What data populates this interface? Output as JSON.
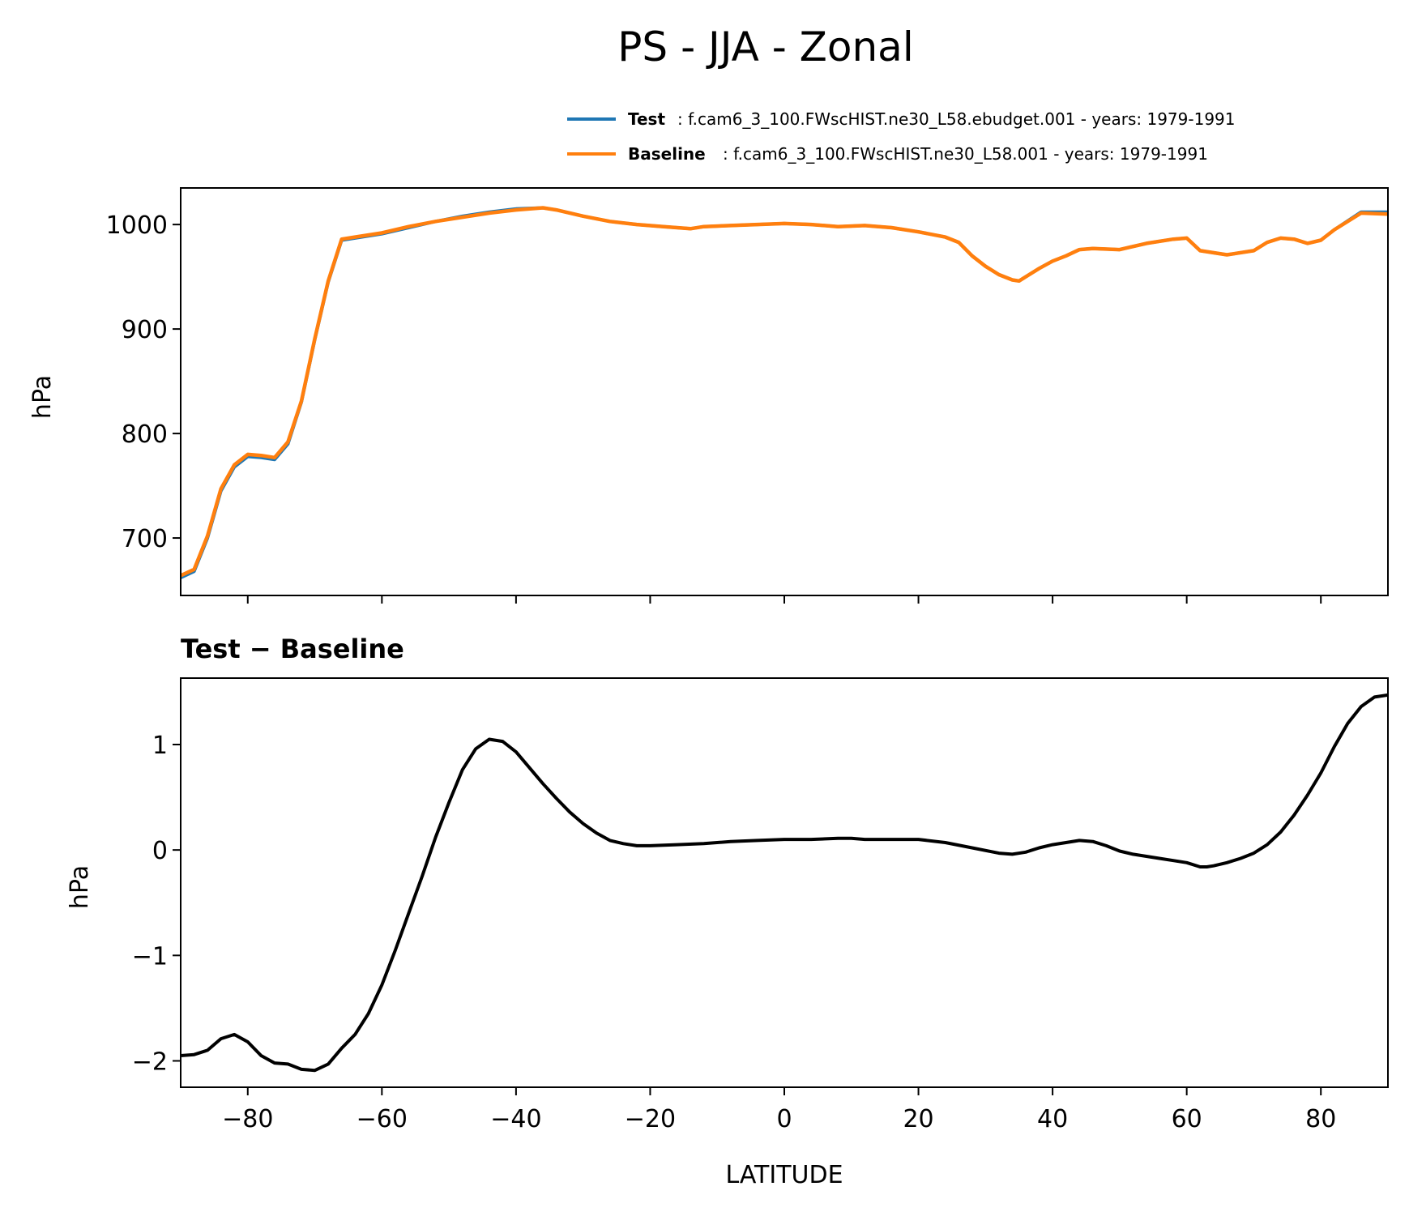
{
  "figure": {
    "title": "PS - JJA - Zonal"
  },
  "legend": {
    "test": {
      "label": "Test",
      "text": ": f.cam6_3_100.FWscHIST.ne30_L58.ebudget.001 - years: 1979-1991",
      "color": "#1f77b4"
    },
    "baseline": {
      "label": "Baseline",
      "text": ": f.cam6_3_100.FWscHIST.ne30_L58.001 - years: 1979-1991",
      "color": "#ff7f0e"
    }
  },
  "chart_data": [
    {
      "type": "line",
      "title": "",
      "xlabel": "",
      "ylabel": "hPa",
      "xlim": [
        -90,
        90
      ],
      "ylim": [
        645,
        1035
      ],
      "xticks": [
        -80,
        -60,
        -40,
        -20,
        0,
        20,
        40,
        60,
        80
      ],
      "yticks": [
        700,
        800,
        900,
        1000
      ],
      "ytick_labels": [
        "700",
        "800",
        "900",
        "1000"
      ],
      "grid": false,
      "series": [
        {
          "name": "Test",
          "color": "#1f77b4",
          "x": [
            -90,
            -88,
            -86,
            -84,
            -82,
            -80,
            -78,
            -76,
            -74,
            -72,
            -70,
            -68,
            -66,
            -64,
            -60,
            -56,
            -52,
            -48,
            -44,
            -40,
            -36,
            -34,
            -30,
            -26,
            -22,
            -18,
            -14,
            -12,
            -8,
            -4,
            0,
            4,
            8,
            12,
            16,
            20,
            24,
            26,
            28,
            30,
            32,
            34,
            35,
            38,
            40,
            42,
            44,
            46,
            50,
            54,
            58,
            60,
            62,
            66,
            70,
            72,
            74,
            76,
            78,
            80,
            82,
            86,
            90
          ],
          "y": [
            662,
            668,
            700,
            745,
            768,
            778,
            777,
            775,
            790,
            830,
            890,
            945,
            985,
            987,
            991,
            997,
            1003,
            1008,
            1012,
            1015,
            1016,
            1014,
            1008,
            1003,
            1000,
            998,
            996,
            998,
            999,
            1000,
            1001,
            1000,
            998,
            999,
            997,
            993,
            988,
            983,
            970,
            960,
            952,
            947,
            946,
            958,
            965,
            970,
            976,
            977,
            976,
            982,
            986,
            987,
            975,
            971,
            975,
            983,
            987,
            986,
            982,
            985,
            995,
            1012,
            1012
          ]
        },
        {
          "name": "Baseline",
          "color": "#ff7f0e",
          "x": [
            -90,
            -88,
            -86,
            -84,
            -82,
            -80,
            -78,
            -76,
            -74,
            -72,
            -70,
            -68,
            -66,
            -64,
            -60,
            -56,
            -52,
            -48,
            -44,
            -40,
            -36,
            -34,
            -30,
            -26,
            -22,
            -18,
            -14,
            -12,
            -8,
            -4,
            0,
            4,
            8,
            12,
            16,
            20,
            24,
            26,
            28,
            30,
            32,
            34,
            35,
            38,
            40,
            42,
            44,
            46,
            50,
            54,
            58,
            60,
            62,
            66,
            70,
            72,
            74,
            76,
            78,
            80,
            82,
            86,
            90
          ],
          "y": [
            664,
            670,
            702,
            747,
            770,
            780,
            779,
            777,
            792,
            831,
            891,
            946,
            986,
            988,
            992,
            998,
            1003,
            1007,
            1011,
            1014,
            1016,
            1014,
            1008,
            1003,
            1000,
            998,
            996,
            998,
            999,
            1000,
            1001,
            1000,
            998,
            999,
            997,
            993,
            988,
            983,
            970,
            960,
            952,
            947,
            946,
            958,
            965,
            970,
            976,
            977,
            976,
            982,
            986,
            987,
            975,
            971,
            975,
            983,
            987,
            986,
            982,
            985,
            995,
            1011,
            1010
          ]
        }
      ]
    },
    {
      "type": "line",
      "title": "Test − Baseline",
      "xlabel": "LATITUDE",
      "ylabel": "hPa",
      "xlim": [
        -90,
        90
      ],
      "ylim": [
        -2.25,
        1.63
      ],
      "xticks": [
        -80,
        -60,
        -40,
        -20,
        0,
        20,
        40,
        60,
        80
      ],
      "xtick_labels": [
        "−80",
        "−60",
        "−40",
        "−20",
        "0",
        "20",
        "40",
        "60",
        "80"
      ],
      "yticks": [
        -2,
        -1,
        0,
        1
      ],
      "ytick_labels": [
        "−2",
        "−1",
        "0",
        "1"
      ],
      "grid": false,
      "series": [
        {
          "name": "Test - Baseline",
          "color": "#000000",
          "x": [
            -90,
            -88,
            -86,
            -84,
            -82,
            -80,
            -78,
            -76,
            -74,
            -72,
            -70,
            -68,
            -66,
            -64,
            -62,
            -60,
            -58,
            -56,
            -54,
            -52,
            -50,
            -48,
            -46,
            -44,
            -42,
            -40,
            -38,
            -36,
            -34,
            -32,
            -30,
            -28,
            -26,
            -24,
            -22,
            -20,
            -16,
            -12,
            -8,
            -4,
            0,
            4,
            8,
            10,
            12,
            16,
            20,
            24,
            28,
            32,
            34,
            36,
            38,
            40,
            42,
            44,
            46,
            48,
            50,
            52,
            54,
            56,
            58,
            60,
            62,
            63,
            64,
            66,
            68,
            70,
            72,
            74,
            76,
            78,
            80,
            82,
            84,
            86,
            88,
            90
          ],
          "y": [
            -1.95,
            -1.94,
            -1.9,
            -1.79,
            -1.75,
            -1.82,
            -1.95,
            -2.02,
            -2.03,
            -2.08,
            -2.09,
            -2.03,
            -1.88,
            -1.75,
            -1.55,
            -1.28,
            -0.95,
            -0.6,
            -0.25,
            0.12,
            0.45,
            0.76,
            0.96,
            1.05,
            1.03,
            0.93,
            0.78,
            0.63,
            0.49,
            0.36,
            0.25,
            0.16,
            0.09,
            0.06,
            0.04,
            0.04,
            0.05,
            0.06,
            0.08,
            0.09,
            0.1,
            0.1,
            0.11,
            0.11,
            0.1,
            0.1,
            0.1,
            0.07,
            0.02,
            -0.03,
            -0.04,
            -0.02,
            0.02,
            0.05,
            0.07,
            0.09,
            0.08,
            0.04,
            -0.01,
            -0.04,
            -0.06,
            -0.08,
            -0.1,
            -0.12,
            -0.16,
            -0.16,
            -0.15,
            -0.12,
            -0.08,
            -0.03,
            0.05,
            0.17,
            0.33,
            0.52,
            0.73,
            0.98,
            1.2,
            1.36,
            1.45,
            1.47
          ]
        }
      ]
    }
  ]
}
